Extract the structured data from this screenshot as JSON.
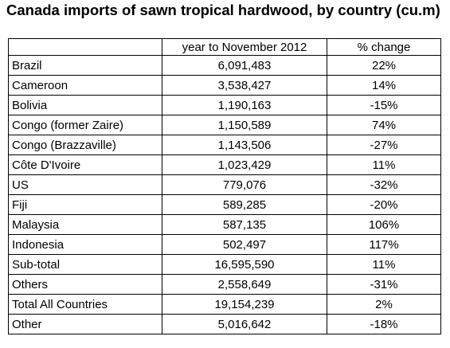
{
  "chart_data": {
    "type": "table",
    "title": "Canada imports of sawn tropical hardwood, by country (cu.m)",
    "columns": [
      "",
      "year to November 2012",
      "% change"
    ],
    "rows": [
      {
        "country": "Brazil",
        "value": "6,091,483",
        "change": "22%"
      },
      {
        "country": "Cameroon",
        "value": "3,538,427",
        "change": "14%"
      },
      {
        "country": "Bolivia",
        "value": "1,190,163",
        "change": "-15%"
      },
      {
        "country": "Congo (former Zaire)",
        "value": "1,150,589",
        "change": "74%"
      },
      {
        "country": "Congo (Brazzaville)",
        "value": "1,143,506",
        "change": "-27%"
      },
      {
        "country": "Côte D'Ivoire",
        "value": "1,023,429",
        "change": "11%"
      },
      {
        "country": "US",
        "value": "779,076",
        "change": "-32%"
      },
      {
        "country": "Fiji",
        "value": "589,285",
        "change": "-20%"
      },
      {
        "country": "Malaysia",
        "value": "587,135",
        "change": "106%"
      },
      {
        "country": "Indonesia",
        "value": "502,497",
        "change": "117%"
      },
      {
        "country": "Sub-total",
        "value": "16,595,590",
        "change": "11%"
      },
      {
        "country": "Others",
        "value": "2,558,649",
        "change": "-31%"
      },
      {
        "country": "Total All Countries",
        "value": "19,154,239",
        "change": "2%"
      },
      {
        "country": "Other",
        "value": "5,016,642",
        "change": "-18%"
      }
    ]
  }
}
